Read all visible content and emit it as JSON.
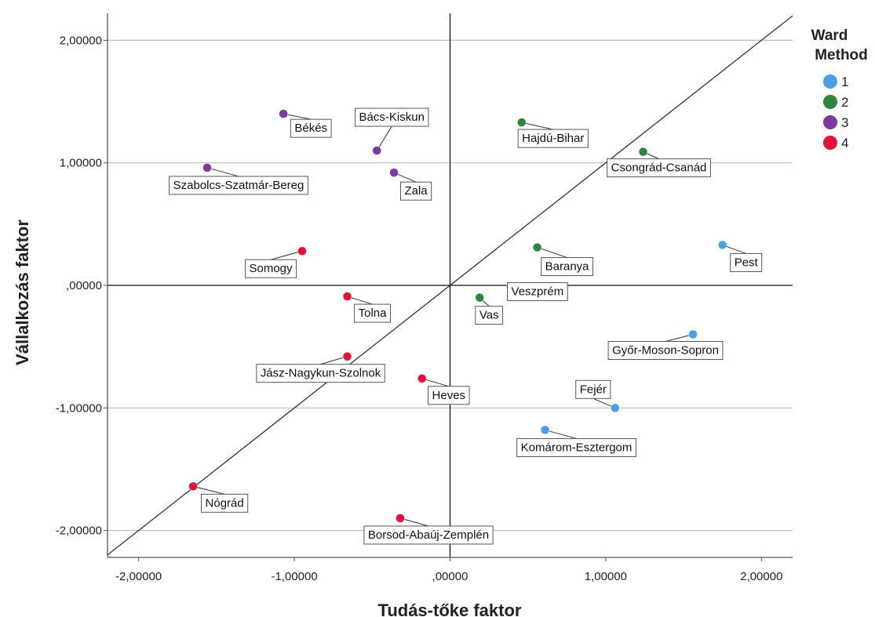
{
  "chart_data": {
    "type": "scatter",
    "title": "",
    "xlabel": "Tudás-tőke faktor",
    "ylabel": "Vállalkozás faktor",
    "xlim": [
      -2.2,
      2.2
    ],
    "ylim": [
      -2.22,
      2.22
    ],
    "xticks": [
      -2,
      -1,
      0,
      1,
      2
    ],
    "yticks": [
      -2,
      -1,
      0,
      1,
      2
    ],
    "xtick_labels": [
      "-2,00000",
      "-1,00000",
      ",00000",
      "1,00000",
      "2,00000"
    ],
    "ytick_labels": [
      "-2,00000",
      "-1,00000",
      ",00000",
      "1,00000",
      "2,00000"
    ],
    "grid": "horizontal",
    "reference_lines": [
      "x=0",
      "y=0",
      "y=x"
    ],
    "legend": {
      "title_line1": "Ward",
      "title_line2": "Method",
      "placement": "top-right",
      "entries": [
        {
          "label": "1",
          "color": "#4a9fe6"
        },
        {
          "label": "2",
          "color": "#2e8540"
        },
        {
          "label": "3",
          "color": "#7a3a9e"
        },
        {
          "label": "4",
          "color": "#e0113a"
        }
      ]
    },
    "series": [
      {
        "name": "1",
        "points": [
          {
            "label": "Pest",
            "x": 1.75,
            "y": 0.33
          },
          {
            "label": "Győr-Moson-Sopron",
            "x": 1.56,
            "y": -0.4
          },
          {
            "label": "Fejér",
            "x": 1.06,
            "y": -1.0
          },
          {
            "label": "Komárom-Esztergom",
            "x": 0.61,
            "y": -1.18
          }
        ]
      },
      {
        "name": "2",
        "points": [
          {
            "label": "Hajdú-Bihar",
            "x": 0.46,
            "y": 1.33
          },
          {
            "label": "Csongrád-Csanád",
            "x": 1.24,
            "y": 1.09
          },
          {
            "label": "Baranya",
            "x": 0.56,
            "y": 0.31
          },
          {
            "label": "Veszprém",
            "x": 0.39,
            "y": -0.01
          },
          {
            "label": "Vas",
            "x": 0.19,
            "y": -0.1
          }
        ]
      },
      {
        "name": "3",
        "points": [
          {
            "label": "Békés",
            "x": -1.07,
            "y": 1.4
          },
          {
            "label": "Bács-Kiskun",
            "x": -0.47,
            "y": 1.1
          },
          {
            "label": "Zala",
            "x": -0.36,
            "y": 0.92
          },
          {
            "label": "Szabolcs-Szatmár-Bereg",
            "x": -1.56,
            "y": 0.96
          }
        ]
      },
      {
        "name": "4",
        "points": [
          {
            "label": "Somogy",
            "x": -0.95,
            "y": 0.28
          },
          {
            "label": "Tolna",
            "x": -0.66,
            "y": -0.09
          },
          {
            "label": "Jász-Nagykun-Szolnok",
            "x": -0.66,
            "y": -0.58
          },
          {
            "label": "Heves",
            "x": -0.18,
            "y": -0.76
          },
          {
            "label": "Nógrád",
            "x": -1.65,
            "y": -1.64
          },
          {
            "label": "Borsod-Abaúj-Zemplén",
            "x": -0.32,
            "y": -1.9
          }
        ]
      }
    ]
  }
}
